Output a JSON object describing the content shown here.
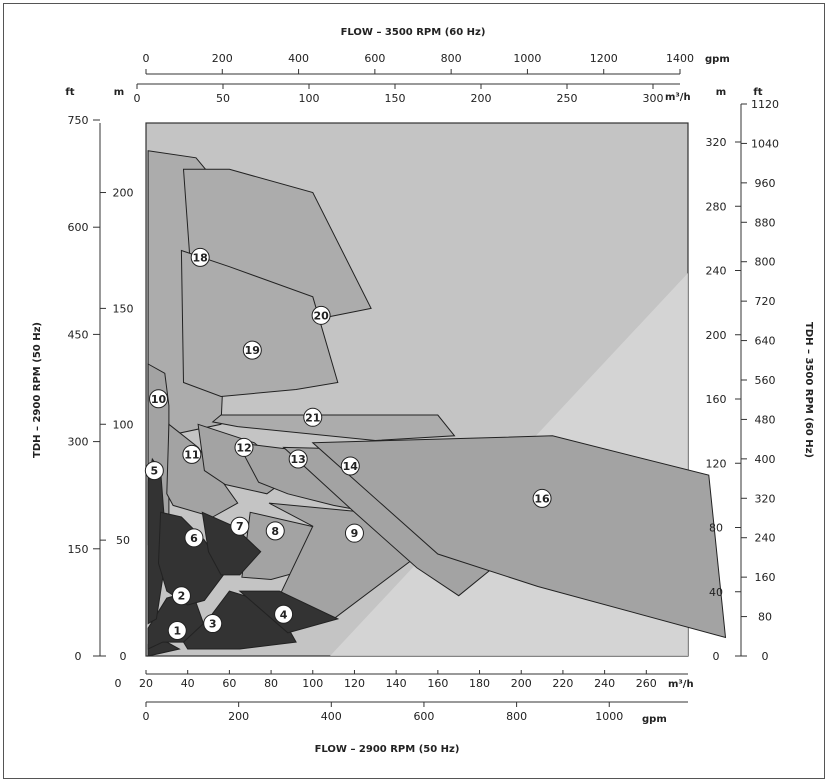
{
  "chart_data": {
    "type": "area",
    "title_top": "FLOW – 3500 RPM (60 Hz)",
    "title_bottom": "FLOW – 2900 RPM (50 Hz)",
    "ylabel_left": "TDH – 2900 RPM (50 Hz)",
    "ylabel_right": "TDH – 3500 RPM (60 Hz)",
    "units": {
      "top_gpm": "gpm",
      "top_m3h": "m³/h",
      "bottom_m3h": "m³/h",
      "bottom_gpm": "gpm",
      "left_ft": "ft",
      "left_m": "m",
      "right_m": "m",
      "right_ft": "ft"
    },
    "axes": {
      "bottom_m3h": {
        "range": [
          20,
          280
        ],
        "ticks": [
          0,
          20,
          40,
          60,
          80,
          100,
          120,
          140,
          160,
          180,
          200,
          220,
          240,
          260
        ]
      },
      "bottom_gpm": {
        "ticks": [
          0,
          200,
          400,
          600,
          800,
          1000
        ]
      },
      "top_gpm": {
        "ticks": [
          0,
          200,
          400,
          600,
          800,
          1000,
          1200,
          1400
        ]
      },
      "top_m3h": {
        "ticks": [
          0,
          50,
          100,
          150,
          200,
          250,
          300
        ]
      },
      "left_m": {
        "range": [
          0,
          230
        ],
        "ticks": [
          0,
          50,
          100,
          150,
          200
        ]
      },
      "left_ft": {
        "ticks": [
          0,
          150,
          300,
          450,
          600,
          750
        ]
      },
      "right_m": {
        "ticks": [
          0,
          40,
          80,
          120,
          160,
          200,
          240,
          280,
          320
        ]
      },
      "right_ft": {
        "ticks": [
          0,
          80,
          160,
          240,
          320,
          400,
          480,
          560,
          640,
          720,
          800,
          880,
          960,
          1040,
          1120
        ]
      }
    },
    "regions": [
      {
        "id": "1",
        "shade": "dark",
        "points": [
          [
            21,
            5
          ],
          [
            26,
            8
          ],
          [
            36,
            3
          ],
          [
            26,
            1
          ],
          [
            21,
            0
          ]
        ]
      },
      {
        "id": "2",
        "shade": "dark",
        "points": [
          [
            21,
            12
          ],
          [
            30,
            25
          ],
          [
            42,
            28
          ],
          [
            48,
            13
          ],
          [
            38,
            6
          ],
          [
            28,
            6
          ],
          [
            21,
            3
          ]
        ]
      },
      {
        "id": "3",
        "shade": "dark",
        "points": [
          [
            38,
            6
          ],
          [
            50,
            16
          ],
          [
            60,
            28
          ],
          [
            82,
            22
          ],
          [
            92,
            6
          ],
          [
            65,
            3
          ],
          [
            40,
            3
          ]
        ]
      },
      {
        "id": "4",
        "shade": "dark",
        "points": [
          [
            65,
            28
          ],
          [
            84,
            28
          ],
          [
            112,
            16
          ],
          [
            88,
            10
          ]
        ]
      },
      {
        "id": "5",
        "shade": "dark",
        "points": [
          [
            21,
            75
          ],
          [
            23,
            85
          ],
          [
            27,
            80
          ],
          [
            30,
            45
          ],
          [
            25,
            16
          ],
          [
            21,
            14
          ]
        ]
      },
      {
        "id": "6",
        "shade": "dark",
        "points": [
          [
            27,
            62
          ],
          [
            37,
            60
          ],
          [
            48,
            50
          ],
          [
            58,
            36
          ],
          [
            48,
            24
          ],
          [
            40,
            22
          ],
          [
            30,
            28
          ],
          [
            26,
            40
          ]
        ]
      },
      {
        "id": "7",
        "shade": "dark",
        "points": [
          [
            47,
            62
          ],
          [
            62,
            56
          ],
          [
            75,
            45
          ],
          [
            65,
            35
          ],
          [
            56,
            35
          ],
          [
            50,
            45
          ]
        ]
      },
      {
        "id": "8",
        "shade": "medium",
        "points": [
          [
            70,
            62
          ],
          [
            104,
            55
          ],
          [
            96,
            37
          ],
          [
            80,
            33
          ],
          [
            66,
            34
          ]
        ]
      },
      {
        "id": "9",
        "shade": "medium",
        "points": [
          [
            79,
            66
          ],
          [
            172,
            58
          ],
          [
            110,
            16
          ],
          [
            83,
            24
          ],
          [
            100,
            56
          ]
        ]
      },
      {
        "id": "10",
        "shade": "medium",
        "points": [
          [
            21,
            126
          ],
          [
            29,
            122
          ],
          [
            31,
            108
          ],
          [
            31,
            45
          ],
          [
            21,
            48
          ]
        ]
      },
      {
        "id": "11",
        "shade": "medium",
        "points": [
          [
            31,
            100
          ],
          [
            45,
            90
          ],
          [
            64,
            66
          ],
          [
            52,
            60
          ],
          [
            33,
            65
          ],
          [
            30,
            70
          ]
        ]
      },
      {
        "id": "12",
        "shade": "medium",
        "points": [
          [
            45,
            100
          ],
          [
            72,
            92
          ],
          [
            90,
            78
          ],
          [
            78,
            70
          ],
          [
            58,
            74
          ],
          [
            48,
            80
          ]
        ]
      },
      {
        "id": "13",
        "shade": "medium",
        "points": [
          [
            64,
            92
          ],
          [
            100,
            88
          ],
          [
            128,
            62
          ],
          [
            110,
            65
          ],
          [
            88,
            70
          ],
          [
            74,
            75
          ]
        ]
      },
      {
        "id": "14",
        "shade": "medium",
        "points": [
          [
            86,
            90
          ],
          [
            180,
            88
          ],
          [
            200,
            48
          ],
          [
            170,
            26
          ],
          [
            150,
            38
          ],
          [
            120,
            62
          ]
        ]
      },
      {
        "id": "15",
        "shade": "medium",
        "points": [
          [
            100,
            92
          ],
          [
            215,
            95
          ],
          [
            290,
            78
          ],
          [
            298,
            8
          ],
          [
            208,
            30
          ],
          [
            160,
            44
          ]
        ]
      },
      {
        "id": "16",
        "shade": "light",
        "points": [
          [
            21,
            218
          ],
          [
            44,
            215
          ],
          [
            56,
            202
          ],
          [
            60,
            180
          ],
          [
            56,
            100
          ],
          [
            30,
            95
          ],
          [
            21,
            110
          ]
        ]
      },
      {
        "id": "18",
        "shade": "light",
        "points": [
          [
            38,
            210
          ],
          [
            60,
            210
          ],
          [
            100,
            200
          ],
          [
            128,
            150
          ],
          [
            100,
            145
          ],
          [
            66,
            130
          ],
          [
            44,
            135
          ]
        ]
      },
      {
        "id": "19",
        "shade": "light",
        "points": [
          [
            37,
            175
          ],
          [
            60,
            168
          ],
          [
            100,
            155
          ],
          [
            112,
            118
          ],
          [
            92,
            115
          ],
          [
            56,
            112
          ],
          [
            38,
            118
          ]
        ]
      },
      {
        "id": "21",
        "shade": "light",
        "points": [
          [
            56,
            104
          ],
          [
            160,
            104
          ],
          [
            168,
            95
          ],
          [
            130,
            93
          ],
          [
            64,
            99
          ],
          [
            52,
            101
          ]
        ]
      }
    ],
    "labels": [
      {
        "text": "1",
        "x": 35,
        "y": 11
      },
      {
        "text": "2",
        "x": 37,
        "y": 26
      },
      {
        "text": "3",
        "x": 52,
        "y": 14
      },
      {
        "text": "4",
        "x": 86,
        "y": 18
      },
      {
        "text": "5",
        "x": 24,
        "y": 80
      },
      {
        "text": "6",
        "x": 43,
        "y": 51
      },
      {
        "text": "7",
        "x": 65,
        "y": 56
      },
      {
        "text": "8",
        "x": 82,
        "y": 54
      },
      {
        "text": "9",
        "x": 120,
        "y": 53
      },
      {
        "text": "10",
        "x": 26,
        "y": 111
      },
      {
        "text": "11",
        "x": 42,
        "y": 87
      },
      {
        "text": "12",
        "x": 67,
        "y": 90
      },
      {
        "text": "13",
        "x": 93,
        "y": 85
      },
      {
        "text": "14",
        "x": 118,
        "y": 82
      },
      {
        "text": "16",
        "x": 210,
        "y": 68
      },
      {
        "text": "18",
        "x": 46,
        "y": 172
      },
      {
        "text": "19",
        "x": 71,
        "y": 132
      },
      {
        "text": "20",
        "x": 104,
        "y": 147
      },
      {
        "text": "21",
        "x": 100,
        "y": 103
      }
    ],
    "grid": false,
    "legend": "none"
  }
}
